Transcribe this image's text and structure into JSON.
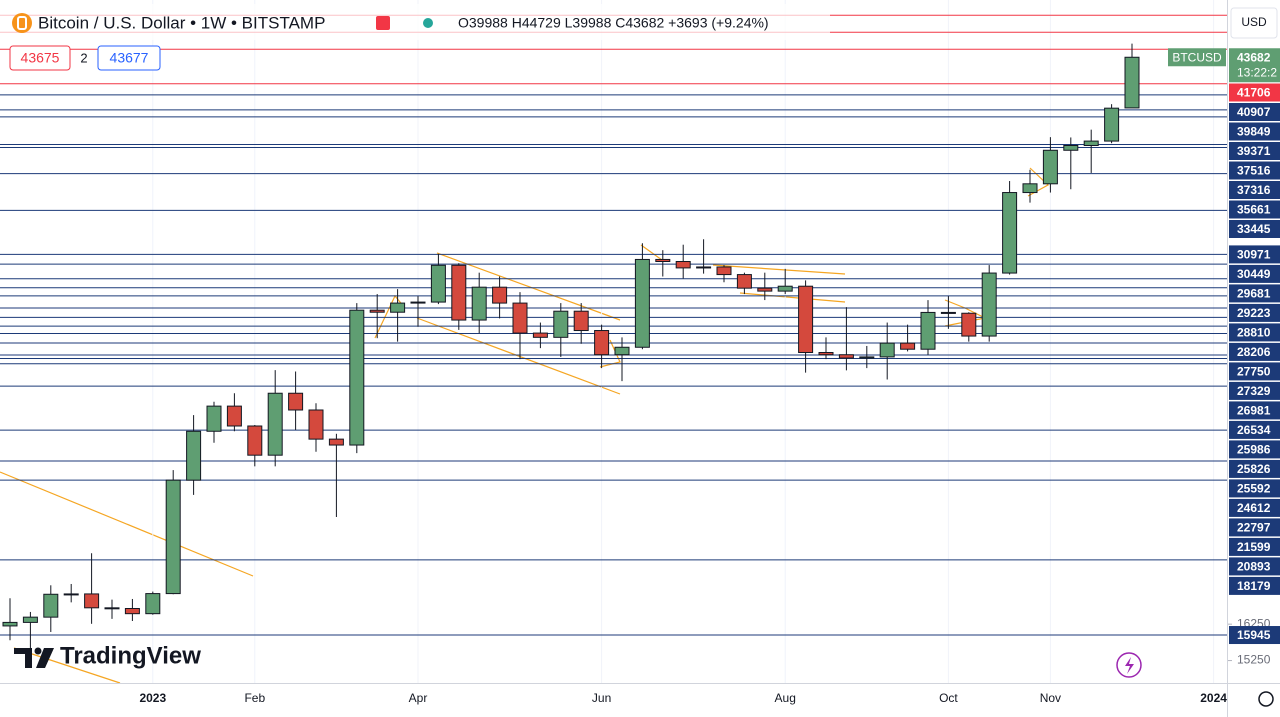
{
  "chart_data": {
    "type": "candlestick",
    "title": "Bitcoin / U.S. Dollar • 1W • BITSTAMP",
    "header_ohlc": "O39988 H44729 L39988 C43682 +3693 (+9.24%)",
    "sell_price": "43675",
    "spread": "2",
    "buy_price": "43677",
    "currency": "USD",
    "symbol": "BTCUSD",
    "countdown": "13:22:2",
    "watermark": "TradingView",
    "log_scale": true,
    "x_grid": true,
    "up_color": "#5f9e72",
    "down_color": "#d4493d",
    "ylim": [
      14665,
      48270
    ],
    "yticks": [
      16250,
      15250
    ],
    "categories": [
      null,
      null,
      null,
      null,
      null,
      null,
      null,
      "2023",
      null,
      null,
      null,
      null,
      "Feb",
      null,
      null,
      null,
      null,
      null,
      null,
      null,
      "Apr",
      null,
      null,
      null,
      null,
      null,
      null,
      null,
      null,
      "Jun",
      null,
      null,
      null,
      null,
      null,
      null,
      null,
      null,
      "Aug",
      null,
      null,
      null,
      null,
      null,
      null,
      null,
      "Oct",
      null,
      null,
      null,
      null,
      "Nov",
      null,
      null,
      null,
      null,
      null,
      null,
      null,
      "2024"
    ],
    "open": [
      16200,
      16300,
      16450,
      17120,
      17130,
      16720,
      16700,
      16550,
      17140,
      20890,
      22750,
      23770,
      22960,
      21820,
      24310,
      23610,
      22440,
      22210,
      28100,
      28000,
      28450,
      28500,
      30390,
      27620,
      29250,
      28450,
      27000,
      26800,
      28050,
      27120,
      26000,
      26340,
      30700,
      30590,
      30250,
      30300,
      29900,
      29200,
      29050,
      29300,
      26100,
      26000,
      25850,
      25900,
      26530,
      26250,
      27990,
      27950,
      26860,
      29980,
      34500,
      35030,
      37140,
      37450,
      37740,
      39988,
      null,
      null,
      null,
      null
    ],
    "high": [
      17000,
      16600,
      17390,
      17430,
      18390,
      16960,
      16980,
      17200,
      21260,
      23400,
      23950,
      24310,
      23000,
      25310,
      25250,
      23890,
      22650,
      28450,
      28900,
      29150,
      28800,
      31000,
      30500,
      30000,
      29800,
      29000,
      27500,
      28450,
      28450,
      27400,
      26800,
      31580,
      31200,
      31500,
      31800,
      30400,
      30000,
      30000,
      30200,
      29600,
      26800,
      28250,
      26400,
      27500,
      27400,
      28600,
      28800,
      28000,
      30400,
      35200,
      35900,
      38000,
      37980,
      38500,
      40250,
      44729,
      null,
      null,
      null,
      null
    ],
    "low": [
      15800,
      15500,
      16030,
      16880,
      16260,
      16400,
      16340,
      16520,
      17120,
      20360,
      22300,
      22750,
      21400,
      21400,
      22800,
      21950,
      19590,
      21900,
      26760,
      26600,
      27300,
      28400,
      27150,
      27000,
      27700,
      25800,
      26300,
      25900,
      26500,
      25400,
      24830,
      26250,
      29800,
      29700,
      29950,
      29500,
      28900,
      28600,
      28900,
      25200,
      25800,
      25300,
      25400,
      24900,
      26150,
      26000,
      27200,
      26600,
      26600,
      29900,
      33900,
      34500,
      34700,
      35700,
      37600,
      39988,
      null,
      null,
      null,
      null
    ],
    "close": [
      16300,
      16450,
      17120,
      17130,
      16720,
      16700,
      16550,
      17140,
      20890,
      22750,
      23770,
      22960,
      21820,
      24310,
      23610,
      22440,
      22210,
      28100,
      28000,
      28450,
      28500,
      30390,
      27620,
      29250,
      28450,
      27000,
      26800,
      28050,
      27120,
      26000,
      26340,
      30700,
      30590,
      30250,
      30300,
      29900,
      29200,
      29050,
      29300,
      26100,
      26000,
      25850,
      25900,
      26530,
      26250,
      27990,
      27950,
      26860,
      29980,
      34500,
      35030,
      37140,
      37450,
      37740,
      39970,
      43682,
      null,
      null,
      null,
      null
    ],
    "unlabeled_levels": [
      {
        "value": 47000,
        "color": "#f23645"
      },
      {
        "value": 45630,
        "color": "#f23645"
      },
      {
        "value": 44300,
        "color": "#f23645"
      }
    ],
    "levels": [
      {
        "value": 41706,
        "color": "#f23645"
      },
      {
        "value": 40907,
        "color": "#1c3a78"
      },
      {
        "value": 39849,
        "color": "#1c3a78"
      },
      {
        "value": 39371,
        "color": "#1c3a78"
      },
      {
        "value": 37516,
        "color": "#1c3a78"
      },
      {
        "value": 37316,
        "color": "#1c3a78"
      },
      {
        "value": 35661,
        "color": "#1c3a78"
      },
      {
        "value": 33445,
        "color": "#1c3a78"
      },
      {
        "value": 30971,
        "color": "#1c3a78"
      },
      {
        "value": 30449,
        "color": "#1c3a78"
      },
      {
        "value": 29681,
        "color": "#1c3a78"
      },
      {
        "value": 29223,
        "color": "#1c3a78"
      },
      {
        "value": 28810,
        "color": "#1c3a78"
      },
      {
        "value": 28206,
        "color": "#1c3a78"
      },
      {
        "value": 27750,
        "color": "#1c3a78"
      },
      {
        "value": 27329,
        "color": "#1c3a78"
      },
      {
        "value": 26981,
        "color": "#1c3a78"
      },
      {
        "value": 26534,
        "color": "#1c3a78"
      },
      {
        "value": 25986,
        "color": "#1c3a78"
      },
      {
        "value": 25826,
        "color": "#1c3a78"
      },
      {
        "value": 25592,
        "color": "#1c3a78"
      },
      {
        "value": 24612,
        "color": "#1c3a78"
      },
      {
        "value": 22797,
        "color": "#1c3a78"
      },
      {
        "value": 21599,
        "color": "#1c3a78"
      },
      {
        "value": 20893,
        "color": "#1c3a78"
      },
      {
        "value": 18179,
        "color": "#1c3a78"
      },
      {
        "value": 15945,
        "color": "#1c3a78"
      }
    ]
  }
}
